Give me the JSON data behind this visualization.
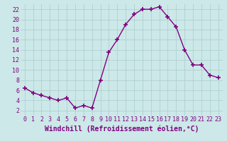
{
  "x": [
    0,
    1,
    2,
    3,
    4,
    5,
    6,
    7,
    8,
    9,
    10,
    11,
    12,
    13,
    14,
    15,
    16,
    17,
    18,
    19,
    20,
    21,
    22,
    23
  ],
  "y": [
    6.5,
    5.5,
    5.0,
    4.5,
    4.0,
    4.5,
    2.5,
    3.0,
    2.5,
    8.0,
    13.5,
    16.0,
    19.0,
    21.0,
    22.0,
    22.0,
    22.5,
    20.5,
    18.5,
    14.0,
    11.0,
    11.0,
    9.0,
    8.5
  ],
  "line_color": "#800080",
  "marker": "+",
  "markersize": 4,
  "markeredgewidth": 1.2,
  "linewidth": 1.0,
  "bg_color": "#cce8e8",
  "grid_color": "#aacccc",
  "xlabel": "Windchill (Refroidissement éolien,°C)",
  "xlabel_color": "#800080",
  "xlim": [
    -0.5,
    23.5
  ],
  "ylim": [
    1,
    23
  ],
  "yticks": [
    2,
    4,
    6,
    8,
    10,
    12,
    14,
    16,
    18,
    20,
    22
  ],
  "xticks": [
    0,
    1,
    2,
    3,
    4,
    5,
    6,
    7,
    8,
    9,
    10,
    11,
    12,
    13,
    14,
    15,
    16,
    17,
    18,
    19,
    20,
    21,
    22,
    23
  ],
  "tick_fontsize": 6,
  "xlabel_fontsize": 7
}
